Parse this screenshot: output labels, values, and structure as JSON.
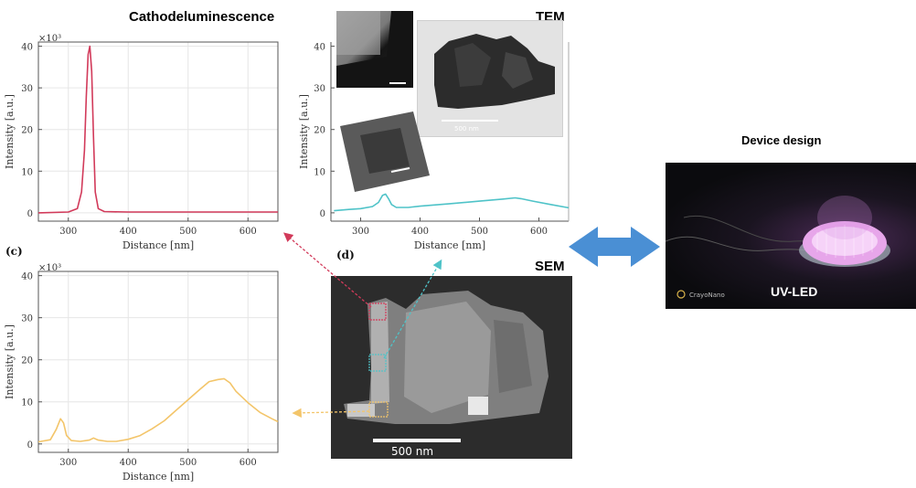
{
  "headings": {
    "cl": "Cathodeluminescence",
    "tem": "TEM",
    "sem": "SEM",
    "device": "Device design",
    "uvled": "UV-LED"
  },
  "panel_letters": {
    "c": "(c)",
    "d": "(d)"
  },
  "tem_scale": "500 nm",
  "sem_scale": "500 nm",
  "device_watermark": "CrayoNano",
  "colors": {
    "red": "#d23a5a",
    "cyan": "#4fc3c8",
    "orange": "#f3c56a",
    "arrow": "#4a8fd4"
  },
  "chart_data": [
    {
      "type": "line",
      "id": "top-left",
      "xlabel": "Distance [nm]",
      "ylabel": "Intensity [a.u.]",
      "exponent": "×10³",
      "xlim": [
        250,
        650
      ],
      "ylim": [
        -2,
        41
      ],
      "xticks": [
        "300",
        "400",
        "500",
        "600"
      ],
      "yticks": [
        "0",
        "10",
        "20",
        "30",
        "40"
      ],
      "grid": true,
      "series": [
        {
          "color": "#d23a5a",
          "x": [
            250,
            300,
            315,
            322,
            327,
            330,
            333,
            336,
            339,
            342,
            345,
            350,
            360,
            400,
            450,
            500,
            550,
            600,
            650
          ],
          "y": [
            0,
            0.2,
            1,
            5,
            15,
            28,
            38,
            40,
            34,
            18,
            5,
            1,
            0.3,
            0.2,
            0.2,
            0.2,
            0.2,
            0.2,
            0.2
          ]
        }
      ]
    },
    {
      "type": "line",
      "id": "top-middle",
      "xlabel": "Distance [nm]",
      "ylabel": "Intensity [a.u.]",
      "xlim": [
        250,
        650
      ],
      "ylim": [
        -2,
        41
      ],
      "xticks": [
        "300",
        "400",
        "500",
        "600"
      ],
      "yticks": [
        "0",
        "10",
        "20",
        "30",
        "40"
      ],
      "grid": false,
      "series": [
        {
          "color": "#4fc3c8",
          "x": [
            255,
            280,
            300,
            320,
            330,
            337,
            342,
            347,
            352,
            360,
            380,
            400,
            450,
            500,
            540,
            560,
            570,
            590,
            620,
            650
          ],
          "y": [
            0.5,
            0.8,
            1.0,
            1.5,
            2.5,
            4.2,
            4.5,
            3.4,
            2.0,
            1.3,
            1.3,
            1.6,
            2.2,
            2.8,
            3.3,
            3.6,
            3.4,
            2.8,
            2.0,
            1.2
          ]
        }
      ]
    },
    {
      "type": "line",
      "id": "bottom-left",
      "xlabel": "Distance [nm]",
      "ylabel": "Intensity [a.u.]",
      "exponent": "×10³",
      "xlim": [
        250,
        650
      ],
      "ylim": [
        -2,
        41
      ],
      "xticks": [
        "300",
        "400",
        "500",
        "600"
      ],
      "yticks": [
        "0",
        "10",
        "20",
        "30",
        "40"
      ],
      "grid": true,
      "series": [
        {
          "color": "#f3c56a",
          "x": [
            250,
            270,
            280,
            287,
            292,
            297,
            305,
            320,
            335,
            342,
            350,
            365,
            380,
            400,
            420,
            440,
            460,
            480,
            500,
            520,
            535,
            550,
            560,
            570,
            580,
            600,
            620,
            640,
            650
          ],
          "y": [
            0.5,
            1.0,
            3.5,
            6.0,
            5.0,
            2.0,
            0.8,
            0.6,
            0.9,
            1.4,
            0.9,
            0.6,
            0.6,
            1.1,
            2.0,
            3.6,
            5.5,
            8.0,
            10.5,
            13.0,
            14.8,
            15.3,
            15.5,
            14.5,
            12.5,
            9.8,
            7.5,
            6.0,
            5.3
          ]
        }
      ]
    }
  ]
}
